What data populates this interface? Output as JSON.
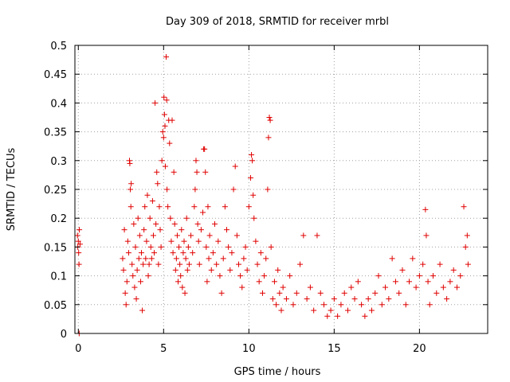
{
  "chart_data": {
    "type": "scatter",
    "title": "Day 309 of 2018, SRMTID for receiver mrbl",
    "xlabel": "GPS time / hours",
    "ylabel": "SRMTID / TECUs",
    "xlim": [
      -0.2,
      24
    ],
    "ylim": [
      0,
      0.5
    ],
    "x_ticks": [
      0,
      5,
      10,
      15,
      20
    ],
    "y_ticks": [
      0,
      0.05,
      0.1,
      0.15,
      0.2,
      0.25,
      0.3,
      0.35,
      0.4,
      0.45,
      0.5
    ],
    "x_tick_labels": [
      "0",
      "5",
      "10",
      "15",
      "20"
    ],
    "y_tick_labels": [
      "0",
      "0.05",
      "0.1",
      "0.15",
      "0.2",
      "0.25",
      "0.3",
      "0.35",
      "0.4",
      "0.45",
      "0.5"
    ],
    "marker": "+",
    "color": "#e00000",
    "grid": true,
    "series": [
      {
        "name": "SRMTID",
        "points": [
          [
            -0.05,
            0.17
          ],
          [
            -0.03,
            0.15
          ],
          [
            0,
            0.16
          ],
          [
            0.02,
            0.14
          ],
          [
            0.04,
            0.12
          ],
          [
            0.06,
            0.18
          ],
          [
            0.05,
            0.0
          ],
          [
            0.1,
            0.155
          ],
          [
            2.6,
            0.13
          ],
          [
            2.65,
            0.11
          ],
          [
            2.7,
            0.18
          ],
          [
            2.75,
            0.07
          ],
          [
            2.8,
            0.05
          ],
          [
            2.85,
            0.09
          ],
          [
            2.9,
            0.16
          ],
          [
            2.95,
            0.14
          ],
          [
            3.0,
            0.3
          ],
          [
            3.02,
            0.295
          ],
          [
            3.05,
            0.25
          ],
          [
            3.08,
            0.22
          ],
          [
            3.1,
            0.26
          ],
          [
            3.15,
            0.12
          ],
          [
            3.2,
            0.1
          ],
          [
            3.25,
            0.19
          ],
          [
            3.3,
            0.08
          ],
          [
            3.35,
            0.15
          ],
          [
            3.4,
            0.06
          ],
          [
            3.45,
            0.11
          ],
          [
            3.5,
            0.2
          ],
          [
            3.55,
            0.13
          ],
          [
            3.6,
            0.17
          ],
          [
            3.65,
            0.09
          ],
          [
            3.7,
            0.14
          ],
          [
            3.75,
            0.04
          ],
          [
            3.8,
            0.12
          ],
          [
            3.85,
            0.18
          ],
          [
            3.9,
            0.22
          ],
          [
            3.95,
            0.13
          ],
          [
            4.0,
            0.16
          ],
          [
            4.05,
            0.24
          ],
          [
            4.1,
            0.1
          ],
          [
            4.15,
            0.12
          ],
          [
            4.2,
            0.2
          ],
          [
            4.25,
            0.15
          ],
          [
            4.3,
            0.13
          ],
          [
            4.35,
            0.23
          ],
          [
            4.4,
            0.17
          ],
          [
            4.45,
            0.14
          ],
          [
            4.5,
            0.4
          ],
          [
            4.55,
            0.19
          ],
          [
            4.6,
            0.28
          ],
          [
            4.65,
            0.26
          ],
          [
            4.7,
            0.12
          ],
          [
            4.75,
            0.22
          ],
          [
            4.8,
            0.18
          ],
          [
            4.85,
            0.15
          ],
          [
            4.9,
            0.3
          ],
          [
            4.95,
            0.35
          ],
          [
            5.0,
            0.34
          ],
          [
            5.02,
            0.41
          ],
          [
            5.05,
            0.38
          ],
          [
            5.08,
            0.36
          ],
          [
            5.1,
            0.29
          ],
          [
            5.15,
            0.48
          ],
          [
            5.18,
            0.405
          ],
          [
            5.2,
            0.25
          ],
          [
            5.25,
            0.22
          ],
          [
            5.3,
            0.37
          ],
          [
            5.35,
            0.33
          ],
          [
            5.4,
            0.2
          ],
          [
            5.45,
            0.16
          ],
          [
            5.5,
            0.37
          ],
          [
            5.55,
            0.14
          ],
          [
            5.6,
            0.28
          ],
          [
            5.65,
            0.19
          ],
          [
            5.7,
            0.11
          ],
          [
            5.75,
            0.13
          ],
          [
            5.8,
            0.17
          ],
          [
            5.85,
            0.09
          ],
          [
            5.9,
            0.15
          ],
          [
            5.95,
            0.12
          ],
          [
            6.0,
            0.1
          ],
          [
            6.05,
            0.18
          ],
          [
            6.1,
            0.08
          ],
          [
            6.15,
            0.14
          ],
          [
            6.2,
            0.16
          ],
          [
            6.25,
            0.07
          ],
          [
            6.3,
            0.13
          ],
          [
            6.35,
            0.2
          ],
          [
            6.4,
            0.11
          ],
          [
            6.45,
            0.15
          ],
          [
            6.5,
            0.12
          ],
          [
            6.6,
            0.17
          ],
          [
            6.7,
            0.14
          ],
          [
            6.8,
            0.22
          ],
          [
            6.85,
            0.25
          ],
          [
            6.9,
            0.3
          ],
          [
            6.95,
            0.28
          ],
          [
            7.0,
            0.19
          ],
          [
            7.05,
            0.16
          ],
          [
            7.1,
            0.12
          ],
          [
            7.2,
            0.18
          ],
          [
            7.3,
            0.21
          ],
          [
            7.35,
            0.32
          ],
          [
            7.4,
            0.32
          ],
          [
            7.45,
            0.28
          ],
          [
            7.5,
            0.15
          ],
          [
            7.55,
            0.09
          ],
          [
            7.6,
            0.22
          ],
          [
            7.65,
            0.13
          ],
          [
            7.7,
            0.17
          ],
          [
            7.8,
            0.11
          ],
          [
            7.9,
            0.14
          ],
          [
            8.0,
            0.19
          ],
          [
            8.1,
            0.12
          ],
          [
            8.2,
            0.16
          ],
          [
            8.3,
            0.1
          ],
          [
            8.4,
            0.07
          ],
          [
            8.5,
            0.13
          ],
          [
            8.6,
            0.22
          ],
          [
            8.7,
            0.18
          ],
          [
            8.8,
            0.15
          ],
          [
            8.9,
            0.11
          ],
          [
            9.0,
            0.14
          ],
          [
            9.1,
            0.25
          ],
          [
            9.2,
            0.29
          ],
          [
            9.3,
            0.17
          ],
          [
            9.4,
            0.12
          ],
          [
            9.5,
            0.1
          ],
          [
            9.6,
            0.08
          ],
          [
            9.7,
            0.13
          ],
          [
            9.8,
            0.15
          ],
          [
            9.9,
            0.11
          ],
          [
            10.0,
            0.22
          ],
          [
            10.1,
            0.27
          ],
          [
            10.15,
            0.31
          ],
          [
            10.2,
            0.3
          ],
          [
            10.25,
            0.24
          ],
          [
            10.3,
            0.2
          ],
          [
            10.4,
            0.16
          ],
          [
            10.5,
            0.12
          ],
          [
            10.6,
            0.09
          ],
          [
            10.7,
            0.14
          ],
          [
            10.8,
            0.07
          ],
          [
            10.9,
            0.1
          ],
          [
            11.0,
            0.13
          ],
          [
            11.1,
            0.25
          ],
          [
            11.15,
            0.34
          ],
          [
            11.2,
            0.375
          ],
          [
            11.25,
            0.37
          ],
          [
            11.3,
            0.15
          ],
          [
            11.4,
            0.06
          ],
          [
            11.5,
            0.09
          ],
          [
            11.6,
            0.05
          ],
          [
            11.7,
            0.11
          ],
          [
            11.8,
            0.07
          ],
          [
            11.9,
            0.04
          ],
          [
            12.0,
            0.08
          ],
          [
            12.2,
            0.06
          ],
          [
            12.4,
            0.1
          ],
          [
            12.6,
            0.05
          ],
          [
            12.8,
            0.07
          ],
          [
            13.0,
            0.12
          ],
          [
            13.2,
            0.17
          ],
          [
            13.4,
            0.06
          ],
          [
            13.6,
            0.08
          ],
          [
            13.8,
            0.04
          ],
          [
            14.0,
            0.17
          ],
          [
            14.2,
            0.07
          ],
          [
            14.4,
            0.05
          ],
          [
            14.6,
            0.03
          ],
          [
            14.8,
            0.04
          ],
          [
            15.0,
            0.06
          ],
          [
            15.2,
            0.03
          ],
          [
            15.4,
            0.05
          ],
          [
            15.6,
            0.07
          ],
          [
            15.8,
            0.04
          ],
          [
            16.0,
            0.08
          ],
          [
            16.2,
            0.06
          ],
          [
            16.4,
            0.09
          ],
          [
            16.6,
            0.05
          ],
          [
            16.8,
            0.03
          ],
          [
            17.0,
            0.06
          ],
          [
            17.2,
            0.04
          ],
          [
            17.4,
            0.07
          ],
          [
            17.6,
            0.1
          ],
          [
            17.8,
            0.05
          ],
          [
            18.0,
            0.08
          ],
          [
            18.2,
            0.06
          ],
          [
            18.4,
            0.13
          ],
          [
            18.6,
            0.09
          ],
          [
            18.8,
            0.07
          ],
          [
            19.0,
            0.11
          ],
          [
            19.2,
            0.05
          ],
          [
            19.4,
            0.09
          ],
          [
            19.6,
            0.13
          ],
          [
            19.8,
            0.08
          ],
          [
            20.0,
            0.1
          ],
          [
            20.2,
            0.12
          ],
          [
            20.35,
            0.215
          ],
          [
            20.4,
            0.17
          ],
          [
            20.5,
            0.09
          ],
          [
            20.6,
            0.05
          ],
          [
            20.8,
            0.1
          ],
          [
            21.0,
            0.07
          ],
          [
            21.2,
            0.12
          ],
          [
            21.4,
            0.08
          ],
          [
            21.6,
            0.06
          ],
          [
            21.8,
            0.09
          ],
          [
            22.0,
            0.11
          ],
          [
            22.2,
            0.08
          ],
          [
            22.4,
            0.1
          ],
          [
            22.6,
            0.22
          ],
          [
            22.7,
            0.15
          ],
          [
            22.8,
            0.17
          ],
          [
            22.85,
            0.12
          ]
        ]
      }
    ]
  }
}
